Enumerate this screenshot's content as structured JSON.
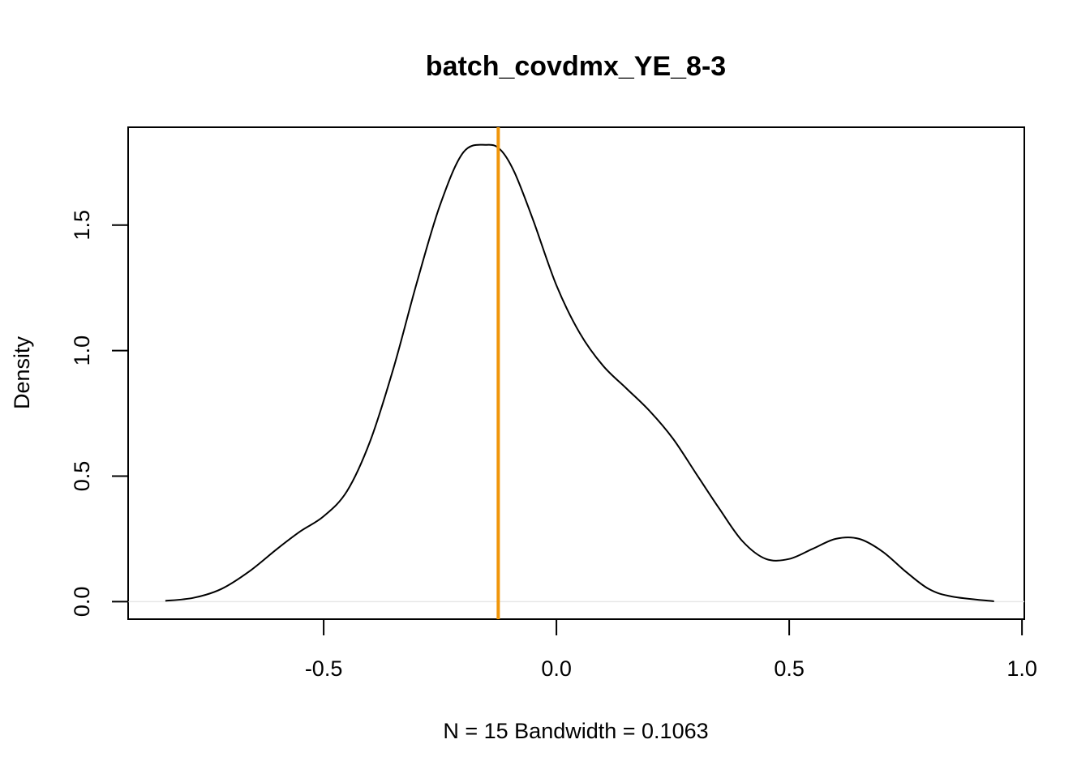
{
  "chart_data": {
    "type": "line",
    "title": "batch_covdmx_YE_8-3",
    "xlabel": "N = 15   Bandwidth = 0.1063",
    "ylabel": "Density",
    "xlim": [
      -0.92,
      1.005
    ],
    "ylim": [
      -0.07,
      1.89
    ],
    "x_ticks": [
      -0.5,
      0.0,
      0.5,
      1.0
    ],
    "x_tick_labels": [
      "-0.5",
      "0.0",
      "0.5",
      "1.0"
    ],
    "y_ticks": [
      0.0,
      0.5,
      1.0,
      1.5
    ],
    "y_tick_labels": [
      "0.0",
      "0.5",
      "1.0",
      "1.5"
    ],
    "grid": false,
    "reference_line": {
      "x": -0.125,
      "color": "#f0960a"
    },
    "curve_color": "#000000",
    "series": [
      {
        "x": [
          -0.84,
          -0.78,
          -0.72,
          -0.66,
          -0.6,
          -0.55,
          -0.5,
          -0.45,
          -0.4,
          -0.35,
          -0.3,
          -0.25,
          -0.2,
          -0.15,
          -0.12,
          -0.09,
          -0.05,
          0.0,
          0.05,
          0.1,
          0.15,
          0.2,
          0.25,
          0.3,
          0.35,
          0.4,
          0.45,
          0.5,
          0.55,
          0.6,
          0.65,
          0.7,
          0.75,
          0.8,
          0.85,
          0.94
        ],
        "y": [
          0.003,
          0.015,
          0.05,
          0.12,
          0.21,
          0.28,
          0.34,
          0.44,
          0.64,
          0.93,
          1.27,
          1.58,
          1.79,
          1.82,
          1.8,
          1.71,
          1.52,
          1.26,
          1.07,
          0.94,
          0.85,
          0.76,
          0.65,
          0.51,
          0.37,
          0.24,
          0.17,
          0.17,
          0.21,
          0.25,
          0.25,
          0.2,
          0.12,
          0.05,
          0.02,
          0.001
        ]
      }
    ]
  }
}
